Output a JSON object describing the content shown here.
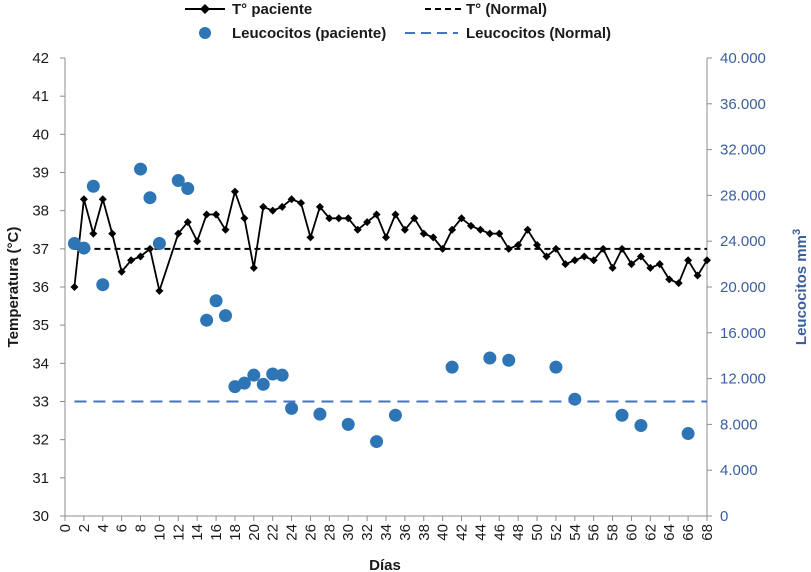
{
  "chart_data": {
    "type": "line",
    "xlabel": "Días",
    "ylabel_left": "Temperatura (°C)",
    "ylabel_right": "Leucocitos mm",
    "ylabel_right_superscript": "3",
    "xlim": [
      0,
      68
    ],
    "x_ticks": [
      0,
      2,
      4,
      6,
      8,
      10,
      12,
      14,
      16,
      18,
      20,
      22,
      24,
      26,
      28,
      30,
      32,
      34,
      36,
      38,
      40,
      42,
      44,
      46,
      48,
      50,
      52,
      54,
      56,
      58,
      60,
      62,
      64,
      66,
      68
    ],
    "ylim_left": [
      30,
      42
    ],
    "y_ticks_left": [
      "30",
      "31",
      "32",
      "33",
      "34",
      "35",
      "36",
      "37",
      "38",
      "39",
      "40",
      "41",
      "42"
    ],
    "ylim_right": [
      0,
      40000
    ],
    "y_ticks_right": [
      "0",
      "4.000",
      "8.000",
      "12.000",
      "16.000",
      "20.000",
      "24.000",
      "28.000",
      "32.000",
      "36.000",
      "40.000"
    ],
    "grid": false,
    "legend_position": "top",
    "series": [
      {
        "name": "T° paciente",
        "axis": "left",
        "style": "line-diamond",
        "color": "#000000",
        "x": [
          1,
          2,
          3,
          4,
          5,
          6,
          7,
          8,
          9,
          10,
          12,
          13,
          14,
          15,
          16,
          17,
          18,
          19,
          20,
          21,
          22,
          23,
          24,
          25,
          26,
          27,
          28,
          29,
          30,
          31,
          32,
          33,
          34,
          35,
          36,
          37,
          38,
          39,
          40,
          41,
          42,
          43,
          44,
          45,
          46,
          47,
          48,
          49,
          50,
          51,
          52,
          53,
          54,
          55,
          56,
          57,
          58,
          59,
          60,
          61,
          62,
          63,
          64,
          65,
          66,
          67,
          68
        ],
        "values": [
          36.0,
          38.3,
          37.4,
          38.3,
          37.4,
          36.4,
          36.7,
          36.8,
          37.0,
          35.9,
          37.4,
          37.7,
          37.2,
          37.9,
          37.9,
          37.5,
          38.5,
          37.8,
          36.5,
          38.1,
          38.0,
          38.1,
          38.3,
          38.2,
          37.3,
          38.1,
          37.8,
          37.8,
          37.8,
          37.5,
          37.7,
          37.9,
          37.3,
          37.9,
          37.5,
          37.8,
          37.4,
          37.3,
          37.0,
          37.5,
          37.8,
          37.6,
          37.5,
          37.4,
          37.4,
          37.0,
          37.1,
          37.5,
          37.1,
          36.8,
          37.0,
          36.6,
          36.7,
          36.8,
          36.7,
          37.0,
          36.5,
          37.0,
          36.6,
          36.8,
          36.5,
          36.6,
          36.2,
          36.1,
          36.7,
          36.3,
          36.7
        ]
      },
      {
        "name": "T° (Normal)",
        "axis": "left",
        "style": "dashed",
        "color": "#000000",
        "x": [
          1,
          68
        ],
        "values": [
          37,
          37
        ]
      },
      {
        "name": "Leucocitos (paciente)",
        "axis": "right",
        "style": "marker",
        "color": "#2e75b6",
        "x": [
          1,
          2,
          3,
          4,
          8,
          9,
          10,
          12,
          13,
          15,
          16,
          17,
          18,
          19,
          20,
          21,
          22,
          23,
          24,
          27,
          30,
          33,
          35,
          41,
          45,
          47,
          52,
          54,
          59,
          61,
          66
        ],
        "values": [
          23800,
          23400,
          28800,
          20200,
          30300,
          27800,
          23800,
          29300,
          28600,
          17100,
          18800,
          17500,
          11300,
          11600,
          12300,
          11500,
          12400,
          12300,
          9400,
          8900,
          8000,
          6500,
          8800,
          13000,
          13800,
          13600,
          13000,
          10200,
          8800,
          7900,
          7200
        ]
      },
      {
        "name": "Leucocitos (Normal)",
        "axis": "right",
        "style": "dashed",
        "color": "#4472c4",
        "x": [
          1,
          68
        ],
        "values": [
          10000,
          10000
        ]
      }
    ]
  }
}
